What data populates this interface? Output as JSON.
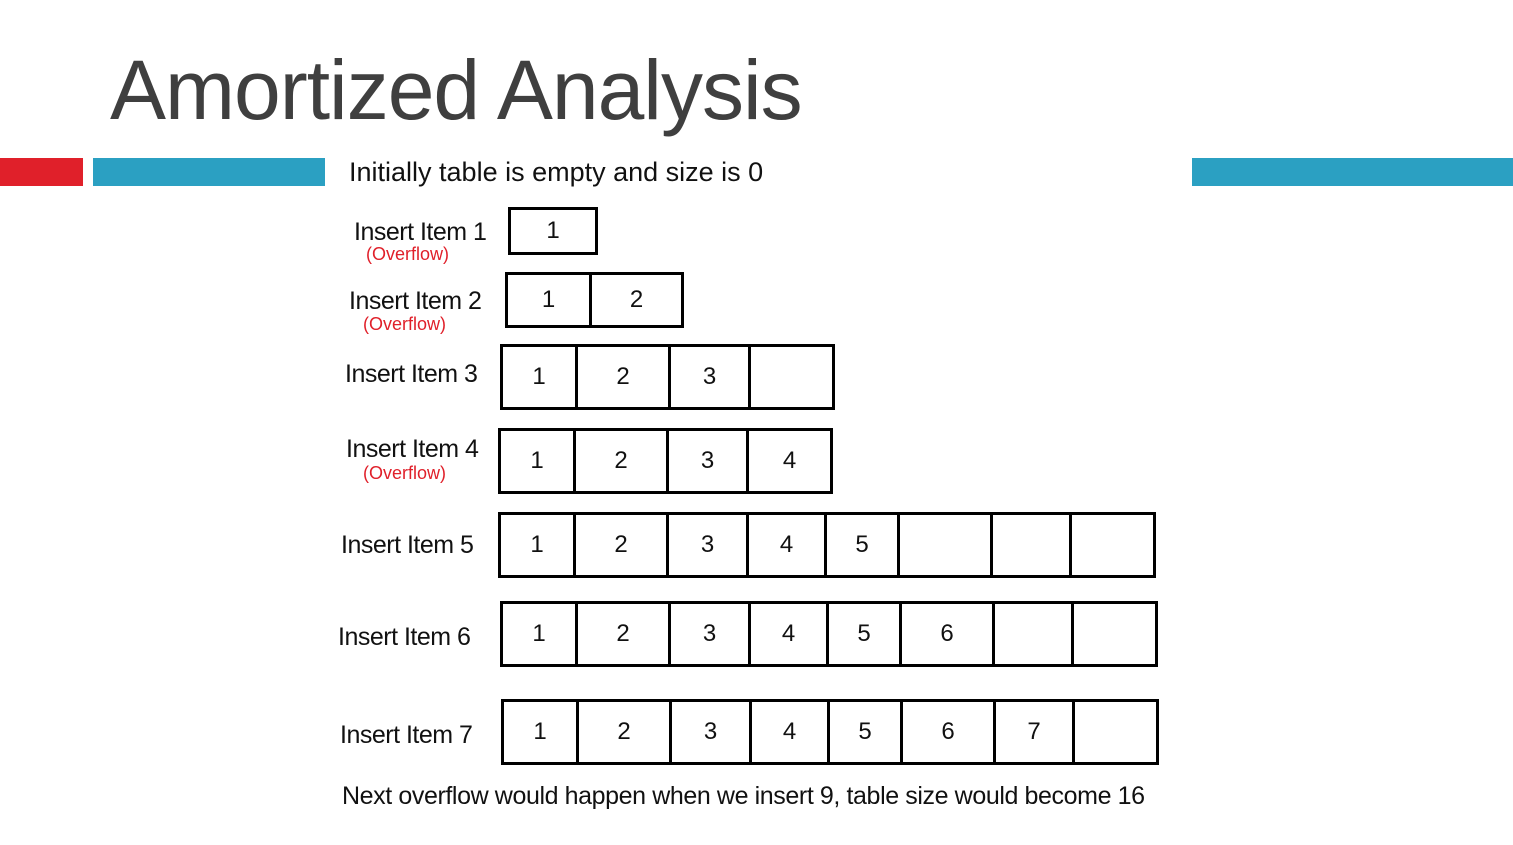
{
  "slide": {
    "title": "Amortized Analysis",
    "subtitle": "Initially table is empty and size is 0",
    "footer": "Next overflow would happen when we insert 9, table size would become 16"
  },
  "colors": {
    "accent_red": "#e0202a",
    "accent_teal": "#2ba0c2",
    "note": "#e0202a"
  },
  "rows": [
    {
      "label": "Insert Item 1",
      "note": "(Overflow)",
      "cells": [
        "1"
      ]
    },
    {
      "label": "Insert Item 2",
      "note": "(Overflow)",
      "cells": [
        "1",
        "2"
      ]
    },
    {
      "label": "Insert Item 3",
      "note": "",
      "cells": [
        "1",
        "2",
        "3",
        ""
      ]
    },
    {
      "label": "Insert Item 4",
      "note": "(Overflow)",
      "cells": [
        "1",
        "2",
        "3",
        "4"
      ]
    },
    {
      "label": "Insert Item 5",
      "note": "",
      "cells": [
        "1",
        "2",
        "3",
        "4",
        "5",
        "",
        "",
        ""
      ]
    },
    {
      "label": "Insert Item 6",
      "note": "",
      "cells": [
        "1",
        "2",
        "3",
        "4",
        "5",
        "6",
        "",
        ""
      ]
    },
    {
      "label": "Insert Item 7",
      "note": "",
      "cells": [
        "1",
        "2",
        "3",
        "4",
        "5",
        "6",
        "7",
        ""
      ]
    }
  ]
}
